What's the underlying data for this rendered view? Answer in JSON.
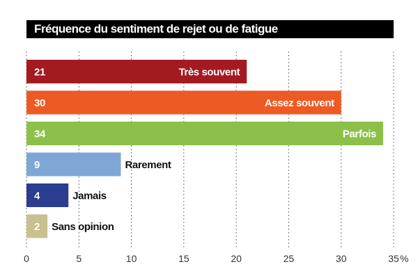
{
  "chart_data": {
    "type": "bar",
    "orientation": "horizontal",
    "title": "Fréquence du sentiment de rejet ou de fatigue",
    "categories": [
      "Très souvent",
      "Assez souvent",
      "Parfois",
      "Rarement",
      "Jamais",
      "Sans opinion"
    ],
    "values": [
      21,
      30,
      34,
      9,
      4,
      2
    ],
    "value_labels": [
      "21",
      "30",
      "34",
      "9",
      "4",
      "2"
    ],
    "colors": [
      "#a31a21",
      "#ee5a24",
      "#8dc04a",
      "#7ea7d6",
      "#2a3d8f",
      "#c9c08f"
    ],
    "category_label_placement": [
      "inside",
      "inside",
      "inside",
      "outside",
      "outside",
      "outside"
    ],
    "xlim": [
      0,
      35
    ],
    "ticks": [
      0,
      5,
      10,
      15,
      20,
      25,
      30,
      35
    ],
    "tick_labels": [
      "0",
      "5",
      "10",
      "15",
      "20",
      "25",
      "30",
      "35"
    ],
    "unit": "%",
    "grid": "vertical dashed"
  }
}
